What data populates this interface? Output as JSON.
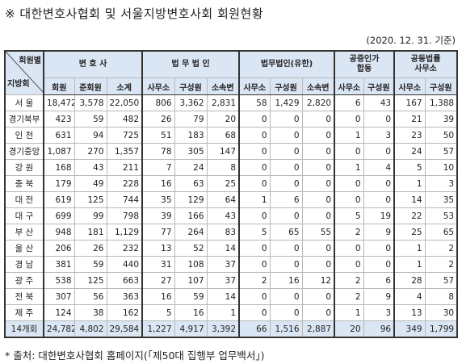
{
  "title": "※ 대한변호사협회 및 서울지방변호사회 회원현황",
  "date_note": "(2020. 12. 31. 기준)",
  "table": {
    "corner": {
      "top": "회원별",
      "bottom": "지방회"
    },
    "groups": [
      {
        "label": "변 호 사",
        "columns": [
          "회원",
          "준회원",
          "소계"
        ]
      },
      {
        "label": "법 무 법 인",
        "columns": [
          "사무소",
          "구성원",
          "소속변"
        ]
      },
      {
        "label": "법무법인(유한)",
        "columns": [
          "사무소",
          "구성원",
          "소속변"
        ]
      },
      {
        "label": "공증인가\n합동",
        "columns": [
          "사무소",
          "구성원"
        ]
      },
      {
        "label": "공동법률\n사무소",
        "columns": [
          "사무소",
          "구성원"
        ]
      }
    ],
    "rows": [
      {
        "name": "서 울",
        "values": [
          "18,472",
          "3,578",
          "22,050",
          "806",
          "3,362",
          "2,831",
          "58",
          "1,429",
          "2,820",
          "6",
          "43",
          "167",
          "1,388"
        ]
      },
      {
        "name": "경기북부",
        "values": [
          "423",
          "59",
          "482",
          "26",
          "79",
          "20",
          "0",
          "0",
          "0",
          "0",
          "0",
          "21",
          "39"
        ]
      },
      {
        "name": "인 천",
        "values": [
          "631",
          "94",
          "725",
          "51",
          "183",
          "68",
          "0",
          "0",
          "0",
          "1",
          "3",
          "23",
          "50"
        ]
      },
      {
        "name": "경기중앙",
        "values": [
          "1,087",
          "270",
          "1,357",
          "78",
          "305",
          "147",
          "0",
          "0",
          "0",
          "0",
          "0",
          "24",
          "57"
        ]
      },
      {
        "name": "강 원",
        "values": [
          "168",
          "43",
          "211",
          "7",
          "24",
          "8",
          "0",
          "0",
          "0",
          "1",
          "4",
          "5",
          "10"
        ]
      },
      {
        "name": "충 북",
        "values": [
          "179",
          "49",
          "228",
          "16",
          "63",
          "25",
          "0",
          "0",
          "0",
          "0",
          "0",
          "1",
          "3"
        ]
      },
      {
        "name": "대 전",
        "values": [
          "619",
          "125",
          "744",
          "35",
          "129",
          "64",
          "1",
          "6",
          "0",
          "0",
          "0",
          "14",
          "35"
        ]
      },
      {
        "name": "대 구",
        "values": [
          "699",
          "99",
          "798",
          "39",
          "166",
          "43",
          "0",
          "0",
          "0",
          "5",
          "19",
          "22",
          "53"
        ]
      },
      {
        "name": "부 산",
        "values": [
          "948",
          "181",
          "1,129",
          "77",
          "264",
          "83",
          "5",
          "65",
          "55",
          "2",
          "9",
          "25",
          "65"
        ]
      },
      {
        "name": "울 산",
        "values": [
          "206",
          "26",
          "232",
          "13",
          "52",
          "14",
          "0",
          "0",
          "0",
          "0",
          "0",
          "1",
          "2"
        ]
      },
      {
        "name": "경 남",
        "values": [
          "381",
          "59",
          "440",
          "31",
          "108",
          "37",
          "0",
          "0",
          "0",
          "0",
          "0",
          "1",
          "2"
        ]
      },
      {
        "name": "광 주",
        "values": [
          "538",
          "125",
          "663",
          "27",
          "107",
          "37",
          "2",
          "16",
          "12",
          "2",
          "6",
          "28",
          "57"
        ]
      },
      {
        "name": "전 북",
        "values": [
          "307",
          "56",
          "363",
          "16",
          "59",
          "14",
          "0",
          "0",
          "0",
          "2",
          "9",
          "4",
          "8"
        ]
      },
      {
        "name": "제 주",
        "values": [
          "124",
          "38",
          "162",
          "5",
          "16",
          "1",
          "0",
          "0",
          "0",
          "1",
          "3",
          "13",
          "30"
        ]
      }
    ],
    "total": {
      "name": "14개회",
      "values": [
        "24,782",
        "4,802",
        "29,584",
        "1,227",
        "4,917",
        "3,392",
        "66",
        "1,516",
        "2,887",
        "20",
        "96",
        "349",
        "1,799"
      ]
    }
  },
  "source": "* 출처: 대한변호사협회 홈페이지(「제50대 집행부 업무백서」)"
}
